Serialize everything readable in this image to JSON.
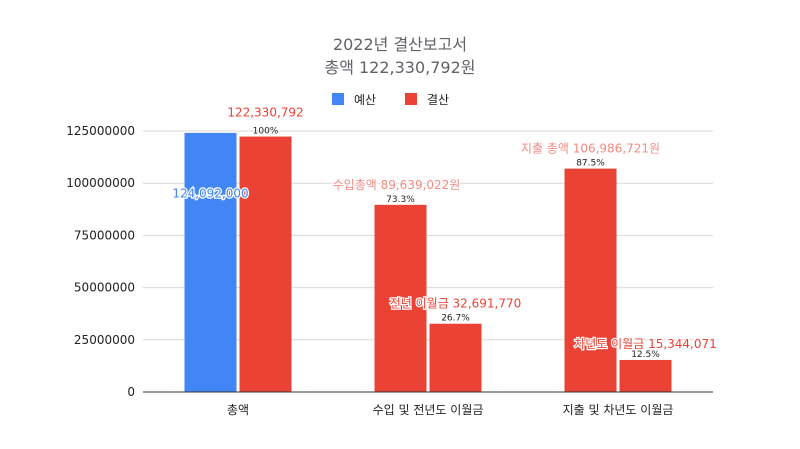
{
  "chart_data": {
    "type": "bar",
    "title": "2022년 결산보고서",
    "subtitle": "총액 122,330,792원",
    "ylim": [
      0,
      125000000
    ],
    "yticks": [
      "0",
      "25000000",
      "50000000",
      "75000000",
      "100000000",
      "125000000"
    ],
    "grid": true,
    "legend_position": "top",
    "legend": [
      {
        "name": "예산",
        "color": "#4285f4"
      },
      {
        "name": "결산",
        "color": "#ea4335"
      }
    ],
    "groups": [
      {
        "category": "총액",
        "bars": [
          {
            "value": 124092000,
            "color": "#4285f4",
            "label": "124,092,000",
            "label_color": "#4285f4",
            "pct": ""
          },
          {
            "value": 122330792,
            "color": "#ea4335",
            "label": "122,330,792",
            "label_color": "#ea4335",
            "pct": "100%"
          }
        ]
      },
      {
        "category": "수입 및 전년도 이월금",
        "bars": [
          {
            "value": 89639022,
            "color": "#ea4335",
            "label": "수입총액 89,639,022원",
            "label_color": "#f28b82",
            "pct": "73.3%"
          },
          {
            "value": 32691770,
            "color": "#ea4335",
            "label": "전년 이월금 32,691,770",
            "label_color": "#ea4335",
            "pct": "26.7%"
          }
        ]
      },
      {
        "category": "지출 및 차년도 이월금",
        "bars": [
          {
            "value": 106986721,
            "color": "#ea4335",
            "label": "지출 총액 106,986,721원",
            "label_color": "#f28b82",
            "pct": "87.5%"
          },
          {
            "value": 15344071,
            "color": "#ea4335",
            "label": "차년도 이월금 15,344,071",
            "label_color": "#ea4335",
            "pct": "12.5%"
          }
        ]
      }
    ]
  }
}
